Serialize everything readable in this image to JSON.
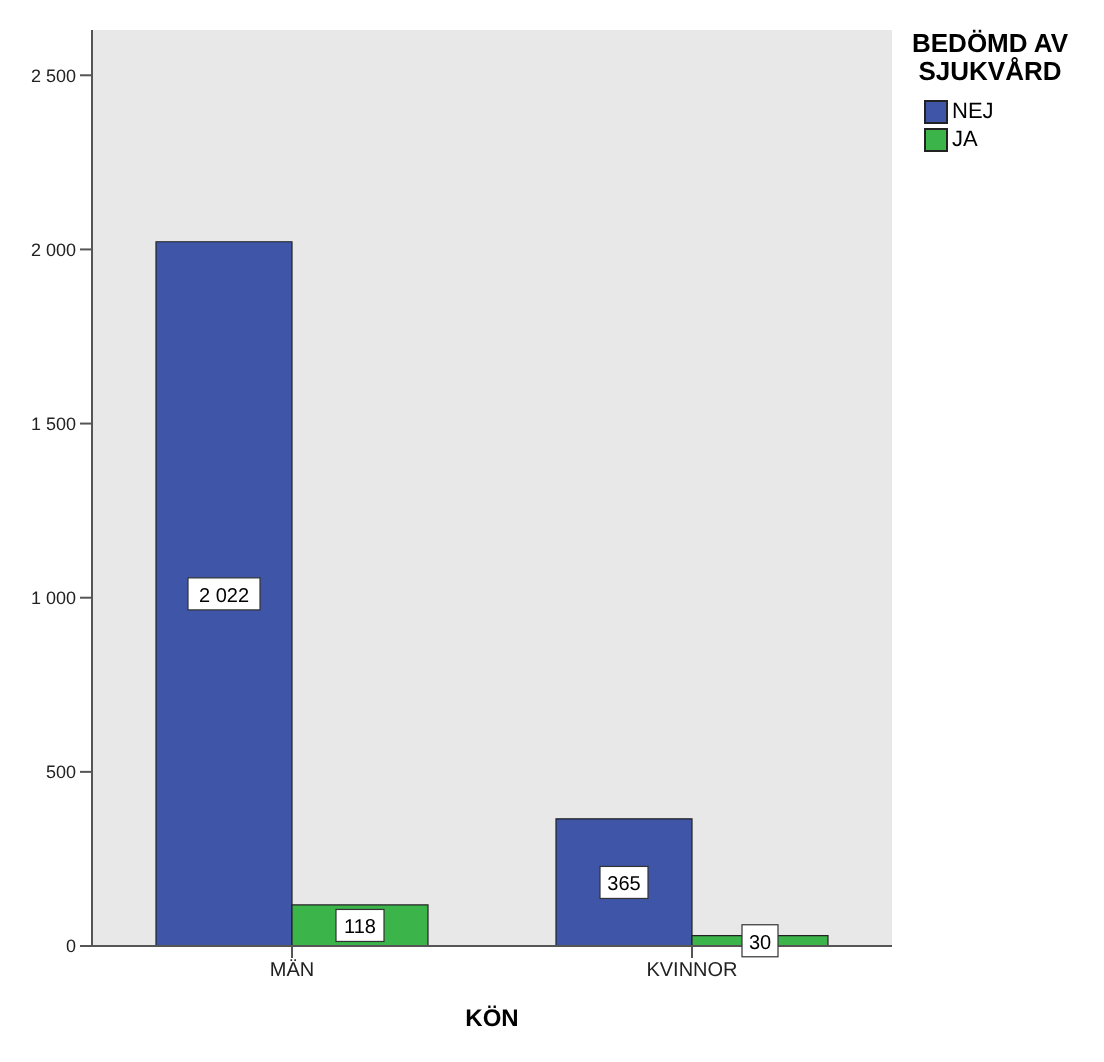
{
  "chart_data": {
    "type": "bar",
    "xlabel": "KÖN",
    "legend_title": "BEDÖMD AV SJUKVÅRD",
    "categories": [
      "MÄN",
      "KVINNOR"
    ],
    "series": [
      {
        "name": "NEJ",
        "color": "#3f55a8",
        "values": [
          2022,
          365
        ],
        "value_labels": [
          "2 022",
          "365"
        ]
      },
      {
        "name": "JA",
        "color": "#3bb54a",
        "values": [
          118,
          30
        ],
        "value_labels": [
          "118",
          "30"
        ]
      }
    ],
    "ylim": [
      0,
      2630
    ],
    "yticks": [
      0,
      500,
      {
        "value": 1000,
        "label": "1 000"
      },
      {
        "value": 1500,
        "label": "1 500"
      },
      {
        "value": 2000,
        "label": "2 000"
      },
      {
        "value": 2500,
        "label": "2 500"
      }
    ],
    "legend": "top right"
  }
}
